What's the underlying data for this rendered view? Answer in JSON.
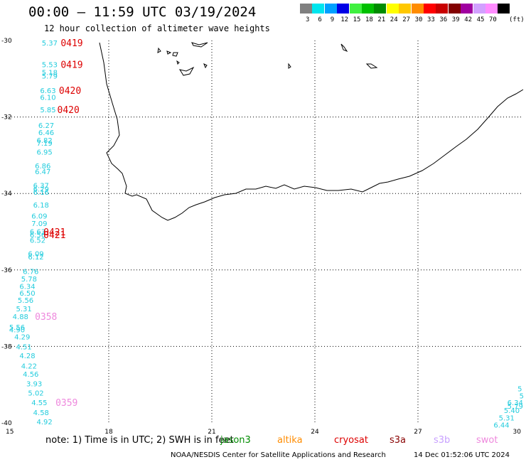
{
  "header": {
    "title": "00:00 – 11:59 UTC 03/19/2024",
    "subtitle": "12 hour collection of altimeter wave heights"
  },
  "legend": {
    "unit": "(ft)",
    "items": [
      {
        "label": "3",
        "color": "#808080"
      },
      {
        "label": "6",
        "color": "#00e5ee"
      },
      {
        "label": "9",
        "color": "#00a0ff"
      },
      {
        "label": "12",
        "color": "#0000e6"
      },
      {
        "label": "15",
        "color": "#40f040"
      },
      {
        "label": "18",
        "color": "#00c000"
      },
      {
        "label": "21",
        "color": "#008c00"
      },
      {
        "label": "24",
        "color": "#ffff00"
      },
      {
        "label": "27",
        "color": "#ffc800"
      },
      {
        "label": "30",
        "color": "#ff8c00"
      },
      {
        "label": "33",
        "color": "#ff0000"
      },
      {
        "label": "36",
        "color": "#c80000"
      },
      {
        "label": "39",
        "color": "#820000"
      },
      {
        "label": "42",
        "color": "#a000a0"
      },
      {
        "label": "45",
        "color": "#d2a0ff"
      },
      {
        "label": "70",
        "color": "#ff8cff"
      },
      {
        "label": "",
        "color": "#000000"
      }
    ]
  },
  "map": {
    "lon_range": [
      15,
      30
    ],
    "lat_range": [
      -40,
      -30
    ],
    "x_ticks": [
      "15",
      "18",
      "21",
      "24",
      "27",
      "30"
    ],
    "y_ticks": [
      "-30",
      "-32",
      "-34",
      "-36",
      "-38",
      "-40"
    ],
    "gridlines": true,
    "swh_color": "#22ccdd",
    "swh_labels": [
      {
        "text": "5.37",
        "lon": 16.05,
        "lat": -30.06
      },
      {
        "text": "5.53",
        "lon": 16.05,
        "lat": -30.62
      },
      {
        "text": "5.18",
        "lon": 16.05,
        "lat": -30.83
      },
      {
        "text": "5.79",
        "lon": 16.05,
        "lat": -30.92
      },
      {
        "text": "6.63",
        "lon": 16.0,
        "lat": -31.3
      },
      {
        "text": "6.10",
        "lon": 16.0,
        "lat": -31.48
      },
      {
        "text": "5.85",
        "lon": 16.0,
        "lat": -31.8
      },
      {
        "text": "6.27",
        "lon": 15.95,
        "lat": -32.21
      },
      {
        "text": "6.46",
        "lon": 15.95,
        "lat": -32.4
      },
      {
        "text": "6.82",
        "lon": 15.9,
        "lat": -32.6
      },
      {
        "text": "7.19",
        "lon": 15.9,
        "lat": -32.68
      },
      {
        "text": "6.95",
        "lon": 15.9,
        "lat": -32.91
      },
      {
        "text": "6.86",
        "lon": 15.85,
        "lat": -33.27
      },
      {
        "text": "6.47",
        "lon": 15.85,
        "lat": -33.42
      },
      {
        "text": "6.37",
        "lon": 15.8,
        "lat": -33.78
      },
      {
        "text": "6.29",
        "lon": 15.8,
        "lat": -33.88
      },
      {
        "text": "6.16",
        "lon": 15.8,
        "lat": -33.96
      },
      {
        "text": "6.18",
        "lon": 15.8,
        "lat": -34.29
      },
      {
        "text": "6.09",
        "lon": 15.75,
        "lat": -34.58
      },
      {
        "text": "7.09",
        "lon": 15.75,
        "lat": -34.78
      },
      {
        "text": "6.63",
        "lon": 15.7,
        "lat": -34.99
      },
      {
        "text": "6.56",
        "lon": 15.7,
        "lat": -35.07
      },
      {
        "text": "6.52",
        "lon": 15.7,
        "lat": -35.21
      },
      {
        "text": "6.09",
        "lon": 15.65,
        "lat": -35.57
      },
      {
        "text": "6.12",
        "lon": 15.65,
        "lat": -35.65
      },
      {
        "text": "6.76",
        "lon": 15.5,
        "lat": -36.03
      },
      {
        "text": "5.78",
        "lon": 15.45,
        "lat": -36.23
      },
      {
        "text": "6.34",
        "lon": 15.4,
        "lat": -36.42
      },
      {
        "text": "6.50",
        "lon": 15.4,
        "lat": -36.6
      },
      {
        "text": "5.56",
        "lon": 15.35,
        "lat": -36.78
      },
      {
        "text": "5.31",
        "lon": 15.3,
        "lat": -37.01
      },
      {
        "text": "4.88",
        "lon": 15.2,
        "lat": -37.21
      },
      {
        "text": "5.56",
        "lon": 15.1,
        "lat": -37.49
      },
      {
        "text": "4.90",
        "lon": 15.1,
        "lat": -37.56
      },
      {
        "text": "4.29",
        "lon": 15.25,
        "lat": -37.74
      },
      {
        "text": "4.51",
        "lon": 15.3,
        "lat": -38.0
      },
      {
        "text": "4.28",
        "lon": 15.4,
        "lat": -38.23
      },
      {
        "text": "4.22",
        "lon": 15.45,
        "lat": -38.5
      },
      {
        "text": "4.56",
        "lon": 15.5,
        "lat": -38.72
      },
      {
        "text": "3.93",
        "lon": 15.6,
        "lat": -38.97
      },
      {
        "text": "5.02",
        "lon": 15.65,
        "lat": -39.21
      },
      {
        "text": "4.55",
        "lon": 15.75,
        "lat": -39.46
      },
      {
        "text": "4.58",
        "lon": 15.8,
        "lat": -39.72
      },
      {
        "text": "4.92",
        "lon": 15.9,
        "lat": -39.96
      },
      {
        "text": "5",
        "lon": 29.9,
        "lat": -39.1
      },
      {
        "text": "5",
        "lon": 29.95,
        "lat": -39.28
      },
      {
        "text": "6.34",
        "lon": 29.6,
        "lat": -39.46
      },
      {
        "text": "5.79",
        "lon": 29.6,
        "lat": -39.55
      },
      {
        "text": "5.40",
        "lon": 29.5,
        "lat": -39.67
      },
      {
        "text": "5.31",
        "lon": 29.35,
        "lat": -39.86
      },
      {
        "text": "6.44",
        "lon": 29.2,
        "lat": -40.05
      }
    ],
    "pass_labels": [
      {
        "text": "0419",
        "lon": 16.6,
        "lat": -30.06,
        "color": "#dd0000"
      },
      {
        "text": "0419",
        "lon": 16.6,
        "lat": -30.62,
        "color": "#dd0000"
      },
      {
        "text": "0420",
        "lon": 16.55,
        "lat": -31.3,
        "color": "#dd0000"
      },
      {
        "text": "0420",
        "lon": 16.5,
        "lat": -31.8,
        "color": "#dd0000"
      },
      {
        "text": "0421",
        "lon": 16.1,
        "lat": -35.0,
        "color": "#dd0000"
      },
      {
        "text": "0421",
        "lon": 16.1,
        "lat": -35.07,
        "color": "#dd0000"
      },
      {
        "text": "0358",
        "lon": 15.85,
        "lat": -37.21,
        "color": "#ee88dd"
      },
      {
        "text": "0359",
        "lon": 16.45,
        "lat": -39.46,
        "color": "#ee88dd"
      }
    ]
  },
  "footer": {
    "note": "note: 1) Time is in UTC; 2) SWH is in feet",
    "missions": [
      {
        "name": "jason3",
        "color": "#008c00"
      },
      {
        "name": "altika",
        "color": "#ff8c00"
      },
      {
        "name": "cryosat",
        "color": "#dd0000"
      },
      {
        "name": "s3a",
        "color": "#880000"
      },
      {
        "name": "s3b",
        "color": "#c8a0ff"
      },
      {
        "name": "swot",
        "color": "#ee88dd"
      }
    ],
    "credit": "NOAA/NESDIS Center for Satellite Applications and Research",
    "timestamp": "14 Dec 01:52:06 UTC 2024"
  }
}
